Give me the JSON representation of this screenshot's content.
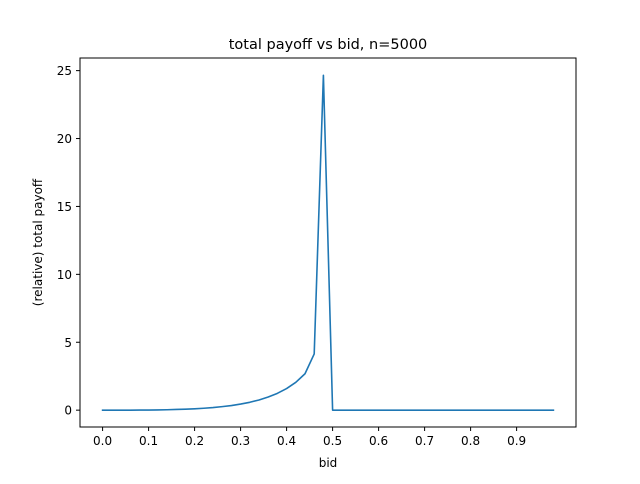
{
  "chart_data": {
    "type": "line",
    "title": "total payoff vs bid, n=5000",
    "xlabel": "bid",
    "ylabel": "(relative) total payoff",
    "xlim": [
      -0.0491,
      1.0291
    ],
    "ylim": [
      -1.24,
      25.93
    ],
    "xticks": [
      0.0,
      0.1,
      0.2,
      0.3,
      0.4,
      0.5,
      0.6,
      0.7,
      0.8,
      0.9
    ],
    "xtick_labels": [
      "0.0",
      "0.1",
      "0.2",
      "0.3",
      "0.4",
      "0.5",
      "0.6",
      "0.7",
      "0.8",
      "0.9"
    ],
    "yticks": [
      0,
      5,
      10,
      15,
      20,
      25
    ],
    "ytick_labels": [
      "0",
      "5",
      "10",
      "15",
      "20",
      "25"
    ],
    "grid": false,
    "legend": "none",
    "series": [
      {
        "color": "#1f77b4",
        "x": [
          0.0,
          0.02,
          0.04,
          0.06,
          0.08,
          0.1,
          0.12,
          0.14,
          0.16,
          0.18,
          0.2,
          0.22,
          0.24,
          0.26,
          0.28,
          0.3,
          0.32,
          0.34,
          0.36,
          0.38,
          0.4,
          0.42,
          0.44,
          0.46,
          0.48,
          0.5,
          0.52,
          0.54,
          0.56,
          0.58,
          0.6,
          0.62,
          0.64,
          0.66,
          0.68,
          0.7,
          0.72,
          0.74,
          0.76,
          0.78,
          0.8,
          0.82,
          0.84,
          0.86,
          0.88,
          0.9,
          0.92,
          0.94,
          0.96,
          0.98
        ],
        "y": [
          0.0,
          0.0,
          0.0,
          0.0,
          0.01,
          0.01,
          0.02,
          0.03,
          0.05,
          0.07,
          0.1,
          0.14,
          0.19,
          0.26,
          0.34,
          0.45,
          0.58,
          0.75,
          0.97,
          1.24,
          1.59,
          2.05,
          2.68,
          4.14,
          24.66,
          0.0,
          0.0,
          0.0,
          0.0,
          0.0,
          0.0,
          0.0,
          0.0,
          0.0,
          0.0,
          0.0,
          0.0,
          0.0,
          0.0,
          0.0,
          0.0,
          0.0,
          0.0,
          0.0,
          0.0,
          0.0,
          0.0,
          0.0,
          0.0,
          0.0
        ]
      }
    ]
  }
}
